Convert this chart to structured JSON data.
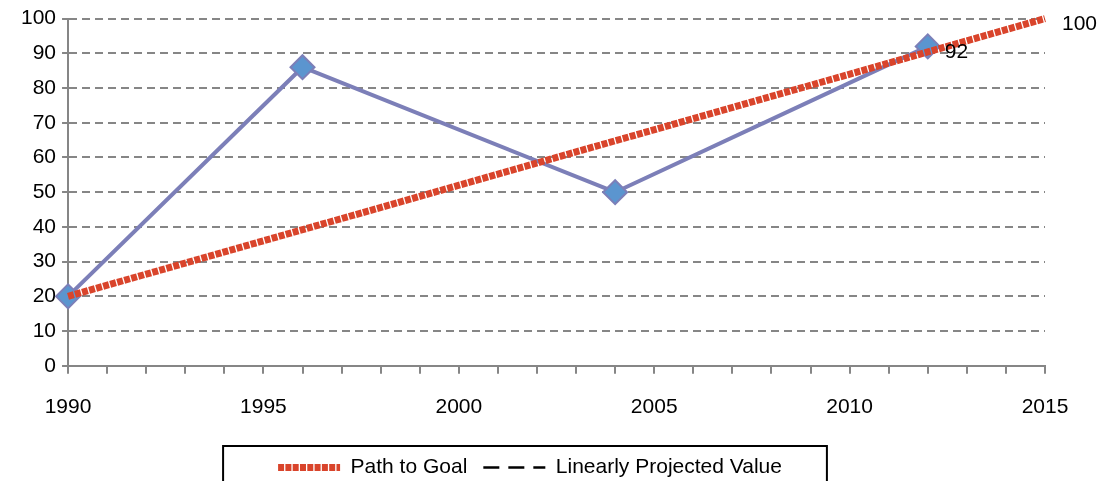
{
  "chart_data": {
    "type": "line",
    "xlim": [
      1990,
      2015
    ],
    "xticks": [
      1990,
      {
        "value": 1991,
        "label": null
      },
      {
        "value": 1992,
        "label": null
      },
      {
        "value": 1993,
        "label": null
      },
      {
        "value": 1994,
        "label": null
      },
      1995,
      {
        "value": 1996,
        "label": null
      },
      {
        "value": 1997,
        "label": null
      },
      {
        "value": 1998,
        "label": null
      },
      {
        "value": 1999,
        "label": null
      },
      2000,
      {
        "value": 2001,
        "label": null
      },
      {
        "value": 2002,
        "label": null
      },
      {
        "value": 2003,
        "label": null
      },
      {
        "value": 2004,
        "label": null
      },
      2005,
      {
        "value": 2006,
        "label": null
      },
      {
        "value": 2007,
        "label": null
      },
      {
        "value": 2008,
        "label": null
      },
      {
        "value": 2009,
        "label": null
      },
      2010,
      {
        "value": 2011,
        "label": null
      },
      {
        "value": 2012,
        "label": null
      },
      {
        "value": 2013,
        "label": null
      },
      {
        "value": 2014,
        "label": null
      },
      2015
    ],
    "ylim": [
      0,
      100
    ],
    "yticks": [
      0,
      10,
      20,
      30,
      40,
      50,
      60,
      70,
      80,
      90,
      100
    ],
    "grid": "y",
    "legend": "bottom",
    "marker": "none",
    "line_style": "solid",
    "series": [
      {
        "name": "Path to Goal",
        "color": "#d9442b",
        "line_style": "dotted",
        "x": [
          1990,
          2015
        ],
        "values": [
          20,
          100
        ],
        "value_labels": [
          null,
          "100"
        ]
      },
      {
        "name": "Linearly Projected Value",
        "color": "#000000",
        "line_style": "dashed"
      },
      {
        "color": "#7c7fb8",
        "marker": "diamond",
        "colors": [
          "#5b95cf",
          "#5b95cf",
          "#5b95cf",
          "#5b95cf"
        ],
        "x": [
          1990,
          1996,
          2004,
          2012
        ],
        "values": [
          20,
          86,
          50,
          92
        ],
        "value_labels": [
          null,
          null,
          null,
          "92"
        ]
      }
    ]
  }
}
